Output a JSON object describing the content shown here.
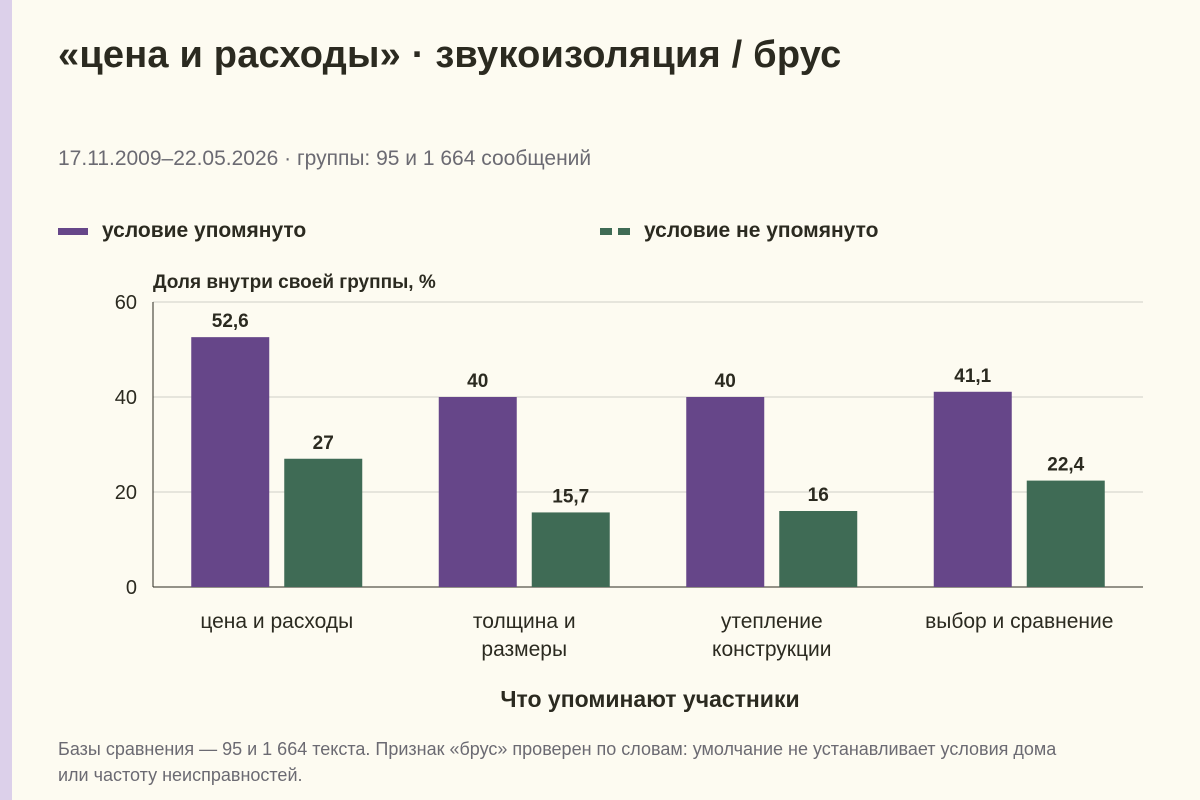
{
  "title": "«цена и расходы» · звукоизоляция / брус",
  "subtitle": "17.11.2009–22.05.2026 · группы: 95 и 1 664 сообщений",
  "legend": {
    "mentioned": "условие упомянуто",
    "not_mentioned": "условие не упомянуто"
  },
  "footnote": "Базы сравнения — 95 и 1 664 текста. Признак «брус» проверен по словам: умолчание не устанавливает условия дома или частоту неисправностей.",
  "colors": {
    "mentioned": "#664689",
    "not_mentioned": "#3f6b55",
    "background": "#fdfbf1",
    "accent": "#dcd0ea"
  },
  "chart_data": {
    "type": "bar",
    "ylabel": "Доля внутри своей группы, %",
    "xlabel": "Что упоминают участники",
    "ylim": [
      0,
      60
    ],
    "yticks": [
      0,
      20,
      40,
      60
    ],
    "grid": "horizontal",
    "legend_position": "top",
    "categories": [
      [
        "цена и расходы"
      ],
      [
        "толщина и",
        "размеры"
      ],
      [
        "утепление",
        "конструкции"
      ],
      [
        "выбор и сравнение"
      ]
    ],
    "series": [
      {
        "name": "условие упомянуто",
        "values": [
          52.6,
          40,
          40,
          41.1
        ],
        "labels": [
          "52,6",
          "40",
          "40",
          "41,1"
        ]
      },
      {
        "name": "условие не упомянуто",
        "values": [
          27,
          15.7,
          16,
          22.4
        ],
        "labels": [
          "27",
          "15,7",
          "16",
          "22,4"
        ]
      }
    ]
  }
}
